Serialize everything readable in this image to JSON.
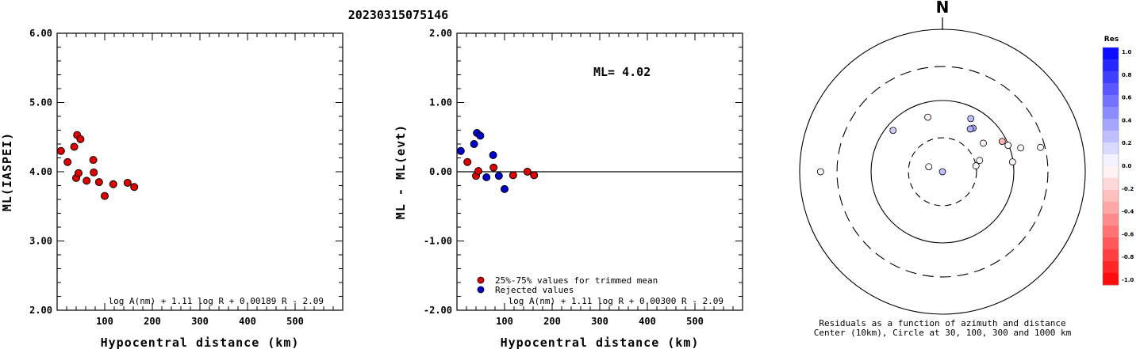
{
  "title": "20230315075146",
  "chart_data": [
    {
      "type": "scatter",
      "ylabel": "ML(IASPEI)",
      "xlabel": "Hypocentral distance (km)",
      "xlim": [
        0,
        600
      ],
      "ylim": [
        2.0,
        6.0
      ],
      "xticks": [
        "100",
        "200",
        "300",
        "400",
        "500"
      ],
      "yticks": [
        "2.00",
        "3.00",
        "4.00",
        "5.00",
        "6.00"
      ],
      "formula": "log A(nm) + 1.11 log R + 0.00189 R - 2.09",
      "colors": {
        "point": "#dd0000"
      },
      "points": [
        {
          "x": 8,
          "y": 4.3
        },
        {
          "x": 22,
          "y": 4.14
        },
        {
          "x": 36,
          "y": 4.36
        },
        {
          "x": 42,
          "y": 4.53
        },
        {
          "x": 49,
          "y": 4.47
        },
        {
          "x": 40,
          "y": 3.91
        },
        {
          "x": 45,
          "y": 3.98
        },
        {
          "x": 62,
          "y": 3.87
        },
        {
          "x": 76,
          "y": 4.17
        },
        {
          "x": 77,
          "y": 3.99
        },
        {
          "x": 88,
          "y": 3.85
        },
        {
          "x": 100,
          "y": 3.65
        },
        {
          "x": 118,
          "y": 3.82
        },
        {
          "x": 148,
          "y": 3.84
        },
        {
          "x": 162,
          "y": 3.78
        }
      ]
    },
    {
      "type": "scatter",
      "ylabel": "ML - ML(evt)",
      "xlabel": "Hypocentral distance (km)",
      "xlim": [
        0,
        600
      ],
      "ylim": [
        -2.0,
        2.0
      ],
      "xticks": [
        "100",
        "200",
        "300",
        "400",
        "500"
      ],
      "yticks": [
        "-2.00",
        "-1.00",
        "0.00",
        "1.00",
        "2.00"
      ],
      "annotation": "ML= 4.02",
      "formula": "log A(nm) + 1.11 log R + 0.00300 R - 2.09",
      "legend": [
        {
          "label": "25%-75% values for trimmed mean",
          "color": "#dd0000"
        },
        {
          "label": "Rejected values",
          "color": "#0000cc"
        }
      ],
      "points_used": [
        {
          "x": 22,
          "y": 0.14
        },
        {
          "x": 40,
          "y": -0.06
        },
        {
          "x": 45,
          "y": 0.01
        },
        {
          "x": 77,
          "y": 0.06
        },
        {
          "x": 118,
          "y": -0.05
        },
        {
          "x": 148,
          "y": 0.0
        },
        {
          "x": 162,
          "y": -0.05
        }
      ],
      "points_rejected": [
        {
          "x": 8,
          "y": 0.3
        },
        {
          "x": 36,
          "y": 0.4
        },
        {
          "x": 42,
          "y": 0.56
        },
        {
          "x": 49,
          "y": 0.52
        },
        {
          "x": 62,
          "y": -0.08
        },
        {
          "x": 76,
          "y": 0.24
        },
        {
          "x": 88,
          "y": -0.06
        },
        {
          "x": 100,
          "y": -0.25
        }
      ]
    },
    {
      "type": "polar",
      "north_label": "N",
      "caption_line1": "Residuals as a function of azimuth and distance",
      "caption_line2": "Center (10km), Circle at 30, 100, 300 and 1000 km",
      "ring_distances_km": [
        10,
        30,
        100,
        300,
        1000
      ],
      "points": [
        {
          "az": 270,
          "dist": 510,
          "res": -0.05
        },
        {
          "az": 310,
          "dist": 80,
          "res": 0.2
        },
        {
          "az": 345,
          "dist": 62,
          "res": -0.05
        },
        {
          "az": 35,
          "dist": 56,
          "res": 0.35
        },
        {
          "az": 33,
          "dist": 52,
          "res": 0.3
        },
        {
          "az": 28,
          "dist": 70,
          "res": 0.25
        },
        {
          "az": 55,
          "dist": 50,
          "res": -0.05
        },
        {
          "az": 63,
          "dist": 87,
          "res": -0.3
        },
        {
          "az": 68,
          "dist": 98,
          "res": 0.0
        },
        {
          "az": 73,
          "dist": 140,
          "res": 0.0
        },
        {
          "az": 76,
          "dist": 260,
          "res": -0.02
        },
        {
          "az": 82,
          "dist": 98,
          "res": -0.05
        },
        {
          "az": 73,
          "dist": 35,
          "res": 0.0
        },
        {
          "az": 80,
          "dist": 30,
          "res": -0.02
        },
        {
          "az": 290,
          "dist": 16,
          "res": -0.02
        },
        {
          "az": 330,
          "dist": 8,
          "res": 0.25
        }
      ],
      "colorbar": {
        "title": "Res",
        "labels": [
          "1.0",
          "0.8",
          "0.6",
          "0.4",
          "0.2",
          "0.0",
          "-0.2",
          "-0.4",
          "-0.6",
          "-0.8",
          "-1.0"
        ],
        "positive_color": "#0000ff",
        "negative_color": "#ff0000"
      }
    }
  ]
}
